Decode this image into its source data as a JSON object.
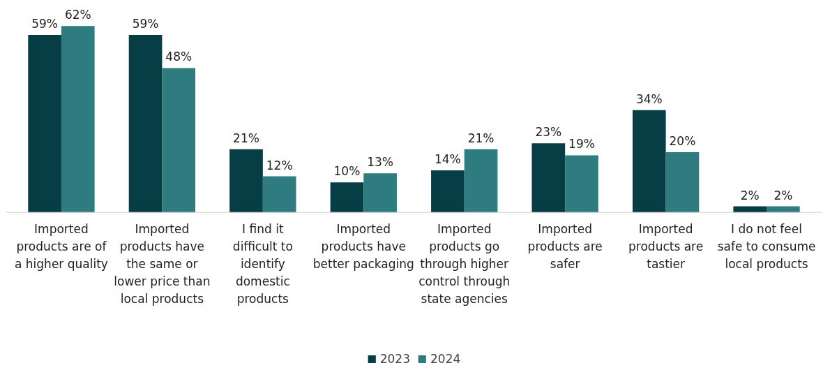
{
  "chart_data": {
    "type": "bar",
    "categories": [
      "Imported products are of a higher quality",
      "Imported products have the same or lower price than local products",
      "I find it difficult to identify domestic products",
      "Imported products have better packaging",
      "Imported products go through higher control through state agencies",
      "Imported products are safer",
      "Imported products are tastier",
      "I do not feel safe to consume local products"
    ],
    "series": [
      {
        "name": "2023",
        "color": "#073d45",
        "values": [
          59,
          59,
          21,
          10,
          14,
          23,
          34,
          2
        ],
        "value_labels": [
          "59%",
          "59%",
          "21%",
          "10%",
          "14%",
          "23%",
          "34%",
          "2%"
        ]
      },
      {
        "name": "2024",
        "color": "#2e7c80",
        "values": [
          62,
          48,
          12,
          13,
          21,
          19,
          20,
          2
        ],
        "value_labels": [
          "62%",
          "48%",
          "12%",
          "13%",
          "21%",
          "19%",
          "20%",
          "2%"
        ]
      }
    ],
    "tick_labels": "x",
    "legend": "bottom"
  }
}
